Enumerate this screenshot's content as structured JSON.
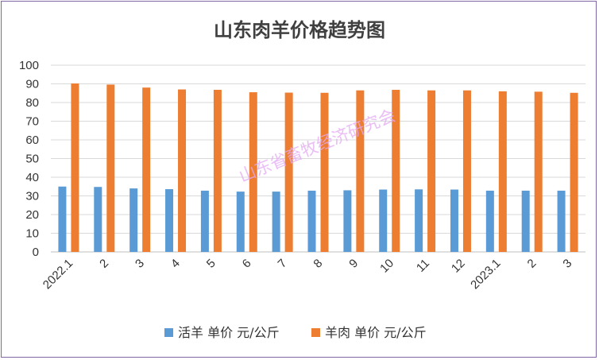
{
  "chart_data": {
    "type": "bar",
    "title": "山东肉羊价格趋势图",
    "categories": [
      "2022.1",
      "2",
      "3",
      "4",
      "5",
      "6",
      "7",
      "8",
      "9",
      "10",
      "11",
      "12",
      "2023.1",
      "2",
      "3"
    ],
    "series": [
      {
        "name": "活羊 单价 元/公斤",
        "color": "#5b9bd5",
        "values": [
          35.0,
          34.8,
          34.0,
          33.6,
          32.8,
          32.3,
          32.3,
          32.8,
          33.0,
          33.4,
          33.5,
          33.4,
          32.8,
          32.8,
          32.8
        ]
      },
      {
        "name": "羊肉 单价 元/公斤",
        "color": "#ed7d31",
        "values": [
          90.2,
          89.6,
          88.0,
          87.0,
          86.8,
          85.5,
          85.3,
          85.2,
          86.5,
          86.8,
          86.5,
          86.5,
          86.0,
          85.8,
          85.2
        ]
      }
    ],
    "ylim": [
      0,
      100
    ],
    "yticks": [
      0,
      10,
      20,
      30,
      40,
      50,
      60,
      70,
      80,
      90,
      100
    ],
    "grid": true,
    "legend": "bottom",
    "xlabel": "",
    "ylabel": ""
  },
  "watermark": "山东省畜牧经济研究会",
  "colors": {
    "frame": "#7f66a6",
    "grid": "#d9d9d9",
    "axis": "#bfbfbf"
  }
}
